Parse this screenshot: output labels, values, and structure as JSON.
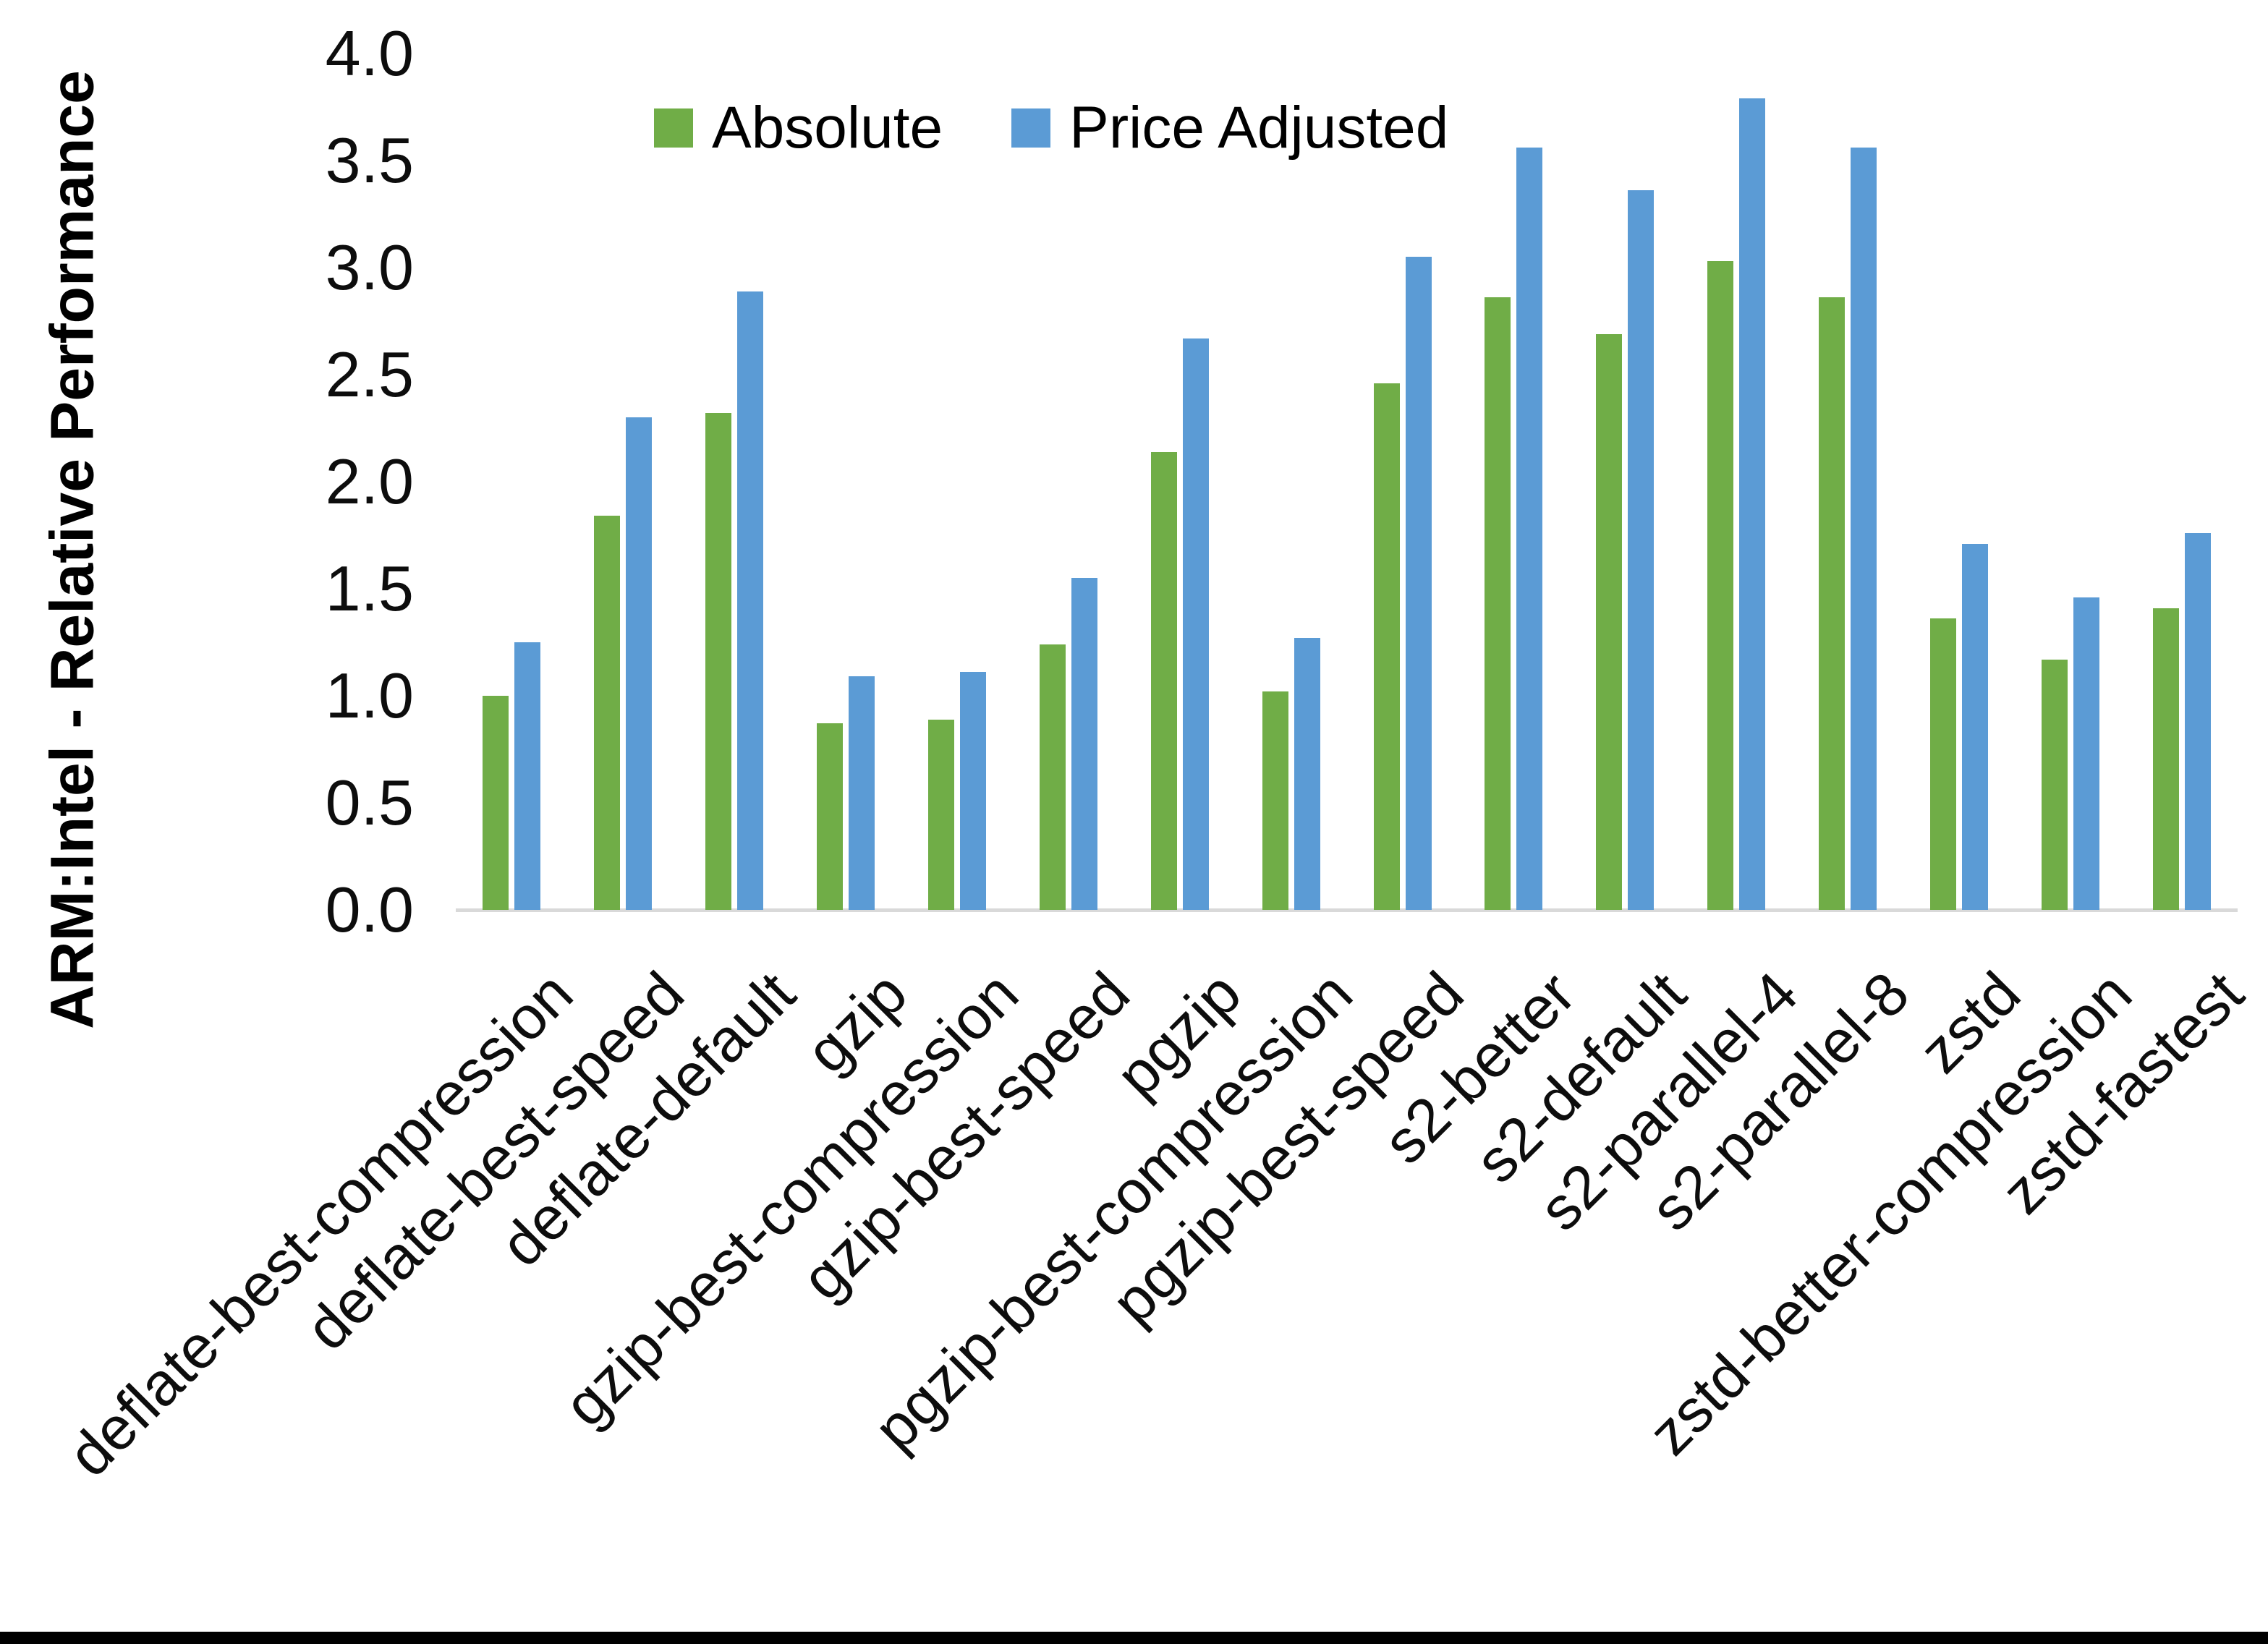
{
  "chart_data": {
    "type": "bar",
    "title": "",
    "ylabel": "ARM:Intel - Relative Performance",
    "xlabel": "",
    "ylim": [
      0.0,
      4.0
    ],
    "ytick_step": 0.5,
    "ytick_labels": [
      "0.0",
      "0.5",
      "1.0",
      "1.5",
      "2.0",
      "2.5",
      "3.0",
      "3.5",
      "4.0"
    ],
    "grid": false,
    "legend_position": "top-center",
    "categories": [
      "deflate-best-compression",
      "deflate-best-speed",
      "deflate-default",
      "gzip",
      "gzip-best-compression",
      "gzip-best-speed",
      "pgzip",
      "pgzip-best-compression",
      "pgzip-best-speed",
      "s2-better",
      "s2-default",
      "s2-parallel-4",
      "s2-parallel-8",
      "zstd",
      "zstd-better-compression",
      "zstd-fastest"
    ],
    "series": [
      {
        "name": "Absolute",
        "color": "#70AD47",
        "values": [
          1.0,
          1.84,
          2.32,
          0.87,
          0.89,
          1.24,
          2.14,
          1.02,
          2.46,
          2.86,
          2.69,
          3.03,
          2.86,
          1.36,
          1.17,
          1.41
        ]
      },
      {
        "name": "Price Adjusted",
        "color": "#5B9BD5",
        "values": [
          1.25,
          2.3,
          2.89,
          1.09,
          1.11,
          1.55,
          2.67,
          1.27,
          3.05,
          3.56,
          3.36,
          3.79,
          3.56,
          1.71,
          1.46,
          1.76
        ]
      }
    ],
    "axis_line_color": "#D9D9D9",
    "bottom_border_color": "#000000"
  }
}
